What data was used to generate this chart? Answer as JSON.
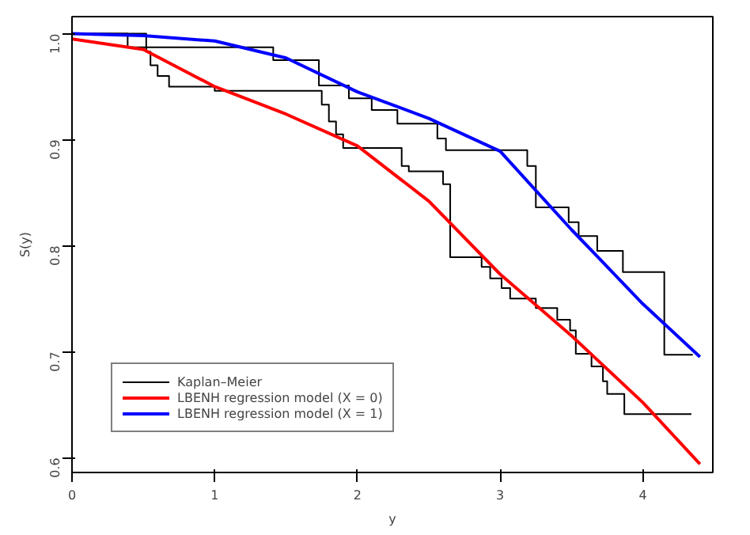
{
  "chart_data": {
    "type": "step",
    "xlabel": "y",
    "ylabel": "S(y)",
    "xlim": [
      0,
      4.49
    ],
    "ylim": [
      0.586,
      1.016
    ],
    "xticks": [
      0,
      1,
      2,
      3,
      4
    ],
    "yticks": [
      {
        "value": 0.6,
        "label": "0.6"
      },
      {
        "value": 0.7,
        "label": "0.7"
      },
      {
        "value": 0.8,
        "label": "0.8"
      },
      {
        "value": 0.9,
        "label": "0.9"
      },
      {
        "value": 1.0,
        "label": "1.0"
      }
    ],
    "grid": false,
    "legend": "bottom left",
    "series": [
      {
        "name": "Kaplan–Meier",
        "color": "#000000",
        "x": [
          0,
          0.52,
          0.55,
          0.6,
          0.68,
          1.0,
          1.75,
          1.8,
          1.85,
          1.9,
          2.31,
          2.36,
          2.6,
          2.65,
          2.87,
          2.93,
          3.01,
          3.07,
          3.25,
          3.4,
          3.49,
          3.53,
          3.64,
          3.72,
          3.75,
          3.87,
          4.34
        ],
        "values": [
          1.0,
          0.983,
          0.97,
          0.96,
          0.95,
          0.946,
          0.933,
          0.917,
          0.905,
          0.892,
          0.875,
          0.87,
          0.858,
          0.789,
          0.78,
          0.769,
          0.76,
          0.75,
          0.741,
          0.73,
          0.72,
          0.698,
          0.686,
          0.672,
          0.66,
          0.641,
          0.641
        ]
      },
      {
        "color": "#000000",
        "x": [
          0,
          0.39,
          1.41,
          1.73,
          1.94,
          2.1,
          2.28,
          2.56,
          2.62,
          3.19,
          3.25,
          3.48,
          3.55,
          3.68,
          3.86,
          4.15,
          4.35
        ],
        "values": [
          1.0,
          0.987,
          0.975,
          0.951,
          0.939,
          0.928,
          0.915,
          0.901,
          0.89,
          0.875,
          0.836,
          0.822,
          0.809,
          0.795,
          0.775,
          0.697,
          0.697
        ]
      },
      {
        "name": "LBENH regression model (X = 0)",
        "type": "line",
        "color": "#ff0000",
        "x": [
          0,
          0.5,
          1,
          1.5,
          2,
          2.5,
          3,
          3.5,
          4,
          4.4
        ],
        "values": [
          0.995,
          0.985,
          0.95,
          0.924,
          0.894,
          0.842,
          0.773,
          0.715,
          0.652,
          0.594
        ]
      },
      {
        "name": "LBENH regression model (X = 1)",
        "type": "line",
        "color": "#0000ff",
        "x": [
          0,
          0.5,
          1,
          1.5,
          2,
          2.5,
          3,
          3.5,
          4,
          4.4
        ],
        "values": [
          1.0,
          0.998,
          0.993,
          0.977,
          0.945,
          0.92,
          0.889,
          0.815,
          0.745,
          0.695
        ]
      }
    ]
  }
}
